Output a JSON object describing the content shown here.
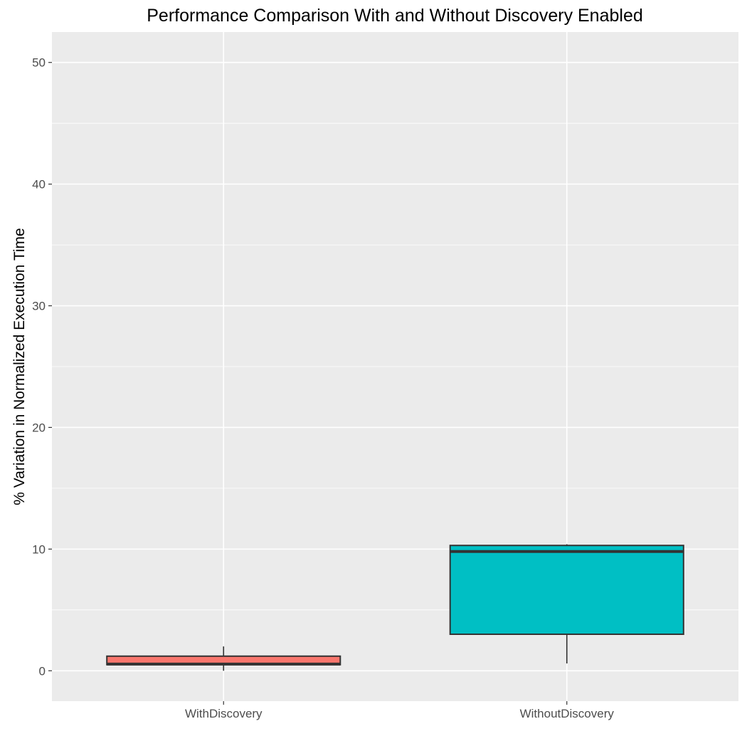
{
  "chart_data": {
    "type": "box",
    "title": "Performance Comparison With and Without Discovery Enabled",
    "xlabel": "",
    "ylabel": "% Variation in Normalized Execution Time",
    "ylim": [
      -2.5,
      52.5
    ],
    "yticks": [
      0,
      10,
      20,
      30,
      40,
      50
    ],
    "grid": true,
    "legend": "none",
    "categories": [
      "WithDiscovery",
      "WithoutDiscovery"
    ],
    "boxes": [
      {
        "category": "WithDiscovery",
        "whisker_low": 0.0,
        "q1": 0.5,
        "median": 0.55,
        "q3": 1.2,
        "whisker_high": 2.0,
        "color": "#f8766d"
      },
      {
        "category": "WithoutDiscovery",
        "whisker_low": 0.6,
        "q1": 3.0,
        "median": 9.8,
        "q3": 10.3,
        "whisker_high": 10.4,
        "color": "#00bfc4"
      }
    ]
  }
}
